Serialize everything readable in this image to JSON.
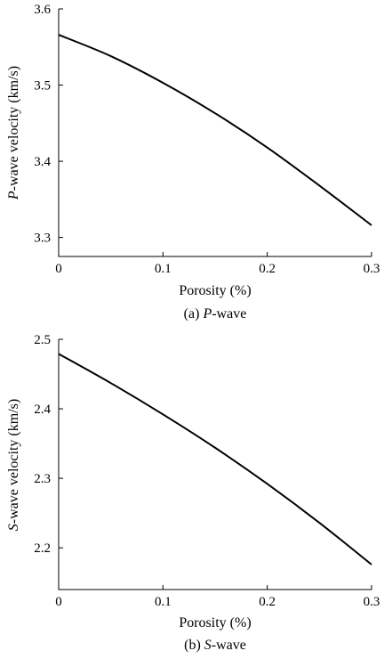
{
  "chart_data": [
    {
      "type": "line",
      "xlabel": "Porosity (%)",
      "ylabel_italic": "P",
      "ylabel_rest": "-wave velocity (km/s)",
      "caption_prefix": "(a) ",
      "caption_italic": "P",
      "caption_suffix": "-wave",
      "xlim": [
        0,
        0.3
      ],
      "ylim": [
        3.275,
        3.6
      ],
      "xticks": [
        0,
        0.1,
        0.2,
        0.3
      ],
      "xtick_labels": [
        "0",
        "0.1",
        "0.2",
        "0.3"
      ],
      "yticks": [
        3.3,
        3.4,
        3.5,
        3.6
      ],
      "ytick_labels": [
        "3.3",
        "3.4",
        "3.5",
        "3.6"
      ],
      "grid": false,
      "series": [
        {
          "color": "#000000",
          "x": [
            0,
            0.05,
            0.1,
            0.15,
            0.2,
            0.25,
            0.3
          ],
          "y": [
            3.566,
            3.538,
            3.503,
            3.463,
            3.418,
            3.368,
            3.316
          ]
        }
      ]
    },
    {
      "type": "line",
      "xlabel": "Porosity (%)",
      "ylabel_italic": "S",
      "ylabel_rest": "-wave velocity (km/s)",
      "caption_prefix": "(b) ",
      "caption_italic": "S",
      "caption_suffix": "-wave",
      "xlim": [
        0,
        0.3
      ],
      "ylim": [
        2.14,
        2.5
      ],
      "xticks": [
        0,
        0.1,
        0.2,
        0.3
      ],
      "xtick_labels": [
        "0",
        "0.1",
        "0.2",
        "0.3"
      ],
      "yticks": [
        2.2,
        2.3,
        2.4,
        2.5
      ],
      "ytick_labels": [
        "2.2",
        "2.3",
        "2.4",
        "2.5"
      ],
      "grid": false,
      "series": [
        {
          "color": "#000000",
          "x": [
            0,
            0.05,
            0.1,
            0.15,
            0.2,
            0.25,
            0.3
          ],
          "y": [
            2.479,
            2.437,
            2.392,
            2.344,
            2.292,
            2.236,
            2.176
          ]
        }
      ]
    }
  ]
}
